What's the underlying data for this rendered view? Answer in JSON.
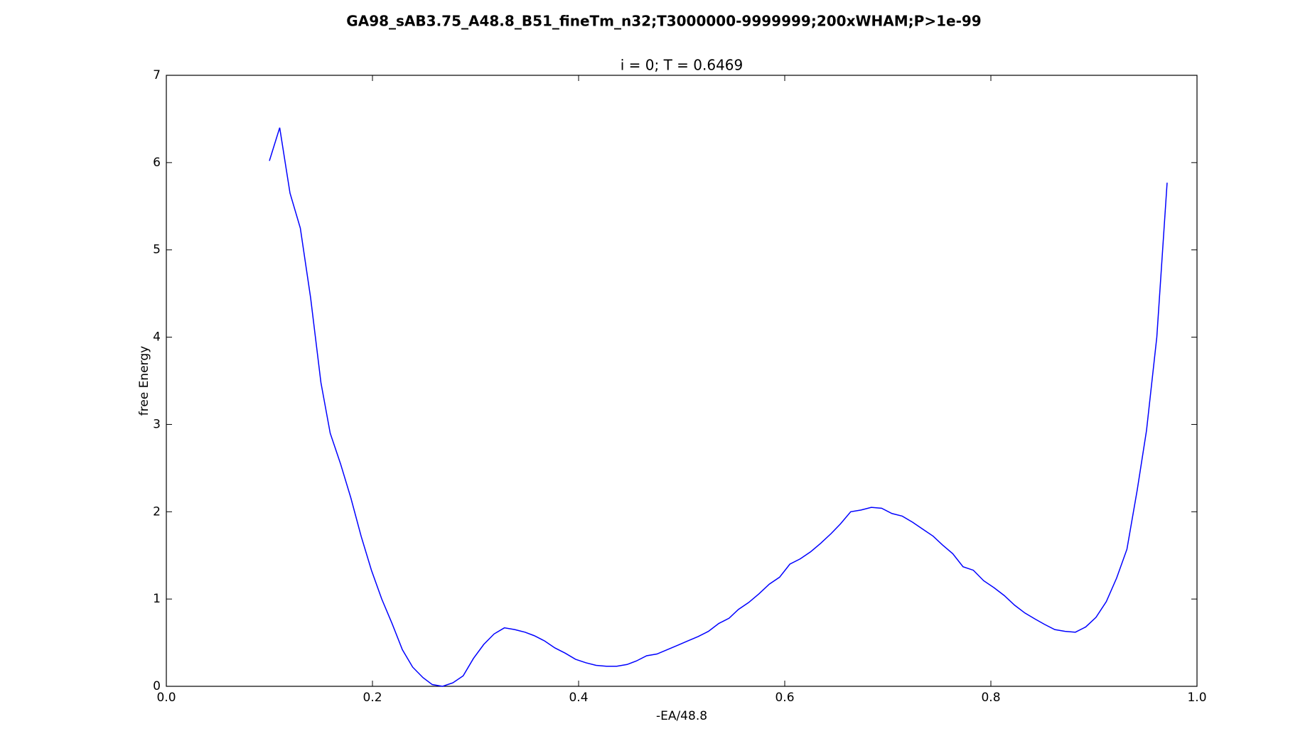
{
  "chart_data": {
    "type": "line",
    "title": "GA98_sAB3.75_A48.8_B51_fineTm_n32;T3000000-9999999;200xWHAM;P>1e-99",
    "subtitle": "i = 0; T = 0.6469",
    "x_label": "-EA/48.8",
    "y_label": "free Energy",
    "xlim": [
      0,
      1
    ],
    "ylim": [
      0,
      7
    ],
    "xticks": [
      {
        "value": 0,
        "label": "0.0"
      },
      {
        "value": 0.2,
        "label": "0.2"
      },
      {
        "value": 0.4,
        "label": "0.4"
      },
      {
        "value": 0.6,
        "label": "0.6"
      },
      {
        "value": 0.8,
        "label": "0.8"
      },
      {
        "value": 1,
        "label": "1.0"
      }
    ],
    "yticks": [
      0,
      1,
      2,
      3,
      4,
      5,
      6,
      7
    ],
    "x": [
      0.1,
      0.11,
      0.12,
      0.13,
      0.14,
      0.15,
      0.159,
      0.169,
      0.179,
      0.189,
      0.199,
      0.209,
      0.219,
      0.229,
      0.239,
      0.249,
      0.258,
      0.268,
      0.278,
      0.288,
      0.298,
      0.308,
      0.318,
      0.328,
      0.338,
      0.348,
      0.357,
      0.367,
      0.377,
      0.387,
      0.397,
      0.407,
      0.417,
      0.427,
      0.437,
      0.447,
      0.456,
      0.466,
      0.476,
      0.486,
      0.496,
      0.506,
      0.516,
      0.526,
      0.536,
      0.546,
      0.555,
      0.565,
      0.575,
      0.585,
      0.595,
      0.605,
      0.615,
      0.625,
      0.635,
      0.645,
      0.654,
      0.664,
      0.674,
      0.684,
      0.694,
      0.704,
      0.714,
      0.724,
      0.734,
      0.744,
      0.753,
      0.763,
      0.773,
      0.783,
      0.793,
      0.803,
      0.813,
      0.823,
      0.833,
      0.843,
      0.852,
      0.862,
      0.872,
      0.882,
      0.892,
      0.902,
      0.912,
      0.922,
      0.932,
      0.942,
      0.951,
      0.961,
      0.971
    ],
    "series": [
      {
        "color": "#0000ff",
        "values": [
          6.02,
          6.4,
          5.65,
          5.25,
          4.45,
          3.48,
          2.9,
          2.55,
          2.16,
          1.72,
          1.33,
          1.0,
          0.72,
          0.42,
          0.22,
          0.1,
          0.02,
          0.0,
          0.04,
          0.12,
          0.32,
          0.48,
          0.6,
          0.67,
          0.65,
          0.62,
          0.58,
          0.52,
          0.44,
          0.38,
          0.31,
          0.27,
          0.24,
          0.23,
          0.23,
          0.25,
          0.29,
          0.35,
          0.37,
          0.42,
          0.47,
          0.52,
          0.57,
          0.63,
          0.72,
          0.78,
          0.88,
          0.96,
          1.06,
          1.17,
          1.25,
          1.4,
          1.46,
          1.54,
          1.64,
          1.75,
          1.86,
          2.0,
          2.02,
          2.05,
          2.04,
          1.98,
          1.95,
          1.88,
          1.8,
          1.72,
          1.62,
          1.52,
          1.37,
          1.33,
          1.21,
          1.13,
          1.04,
          0.93,
          0.84,
          0.77,
          0.71,
          0.65,
          0.63,
          0.62,
          0.68,
          0.79,
          0.97,
          1.24,
          1.57,
          2.25,
          2.93,
          4.0,
          5.77
        ]
      }
    ]
  }
}
